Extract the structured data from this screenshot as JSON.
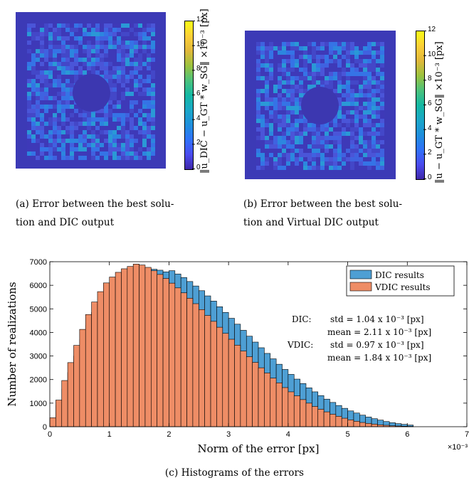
{
  "panel_a": {
    "colorbar": {
      "ticks": [
        "12",
        "10",
        "8",
        "6",
        "4",
        "2",
        "0"
      ],
      "label": "‖u_DIC − u_GT * w_SG‖ ×10⁻³ [px]"
    },
    "caption_line1": "(a)  Error between the best solu-",
    "caption_line2": "tion and DIC output"
  },
  "panel_b": {
    "colorbar": {
      "ticks": [
        "12",
        "10",
        "8",
        "6",
        "4",
        "2",
        "0"
      ],
      "label": "‖u − u_GT * w_SG‖ ×10⁻³ [px]"
    },
    "caption_line1": "(b)  Error between the best solu-",
    "caption_line2": "tion and Virtual DIC output"
  },
  "panel_c": {
    "caption": "(c)  Histograms of the errors"
  },
  "colors": {
    "dic": "#4e9fd4",
    "vdic": "#ee8d66",
    "map_bg": "#3c3ab6"
  },
  "chart_data": {
    "type": "bar",
    "xlabel": "Norm of the error [px]",
    "ylabel": "Number of realizations",
    "x_multiplier": "×10⁻³",
    "xlim": [
      0,
      7
    ],
    "ylim": [
      0,
      7000
    ],
    "xticks": [
      "0",
      "1",
      "2",
      "3",
      "4",
      "5",
      "6",
      "7"
    ],
    "yticks": [
      "0",
      "1000",
      "2000",
      "3000",
      "4000",
      "5000",
      "6000",
      "7000"
    ],
    "bin_width": 0.1,
    "bin_starts": [
      0,
      0.1,
      0.2,
      0.3,
      0.4,
      0.5,
      0.6,
      0.7,
      0.8,
      0.9,
      1.0,
      1.1,
      1.2,
      1.3,
      1.4,
      1.5,
      1.6,
      1.7,
      1.8,
      1.9,
      2.0,
      2.1,
      2.2,
      2.3,
      2.4,
      2.5,
      2.6,
      2.7,
      2.8,
      2.9,
      3.0,
      3.1,
      3.2,
      3.3,
      3.4,
      3.5,
      3.6,
      3.7,
      3.8,
      3.9,
      4.0,
      4.1,
      4.2,
      4.3,
      4.4,
      4.5,
      4.6,
      4.7,
      4.8,
      4.9,
      5.0,
      5.1,
      5.2,
      5.3,
      5.4,
      5.5,
      5.6,
      5.7,
      5.8,
      5.9,
      6.0
    ],
    "series": [
      {
        "name": "DIC results",
        "values": [
          300,
          900,
          1600,
          2300,
          3000,
          3700,
          4300,
          4850,
          5300,
          5700,
          6000,
          6250,
          6430,
          6560,
          6640,
          6680,
          6690,
          6680,
          6640,
          6570,
          6620,
          6480,
          6330,
          6160,
          5970,
          5770,
          5550,
          5330,
          5090,
          4850,
          4600,
          4350,
          4090,
          3840,
          3590,
          3350,
          3110,
          2880,
          2650,
          2430,
          2220,
          2020,
          1830,
          1650,
          1480,
          1320,
          1170,
          1030,
          900,
          780,
          670,
          580,
          490,
          410,
          340,
          280,
          220,
          170,
          130,
          100,
          70
        ]
      },
      {
        "name": "VDIC results",
        "values": [
          380,
          1130,
          1960,
          2720,
          3450,
          4130,
          4760,
          5290,
          5730,
          6100,
          6350,
          6550,
          6700,
          6800,
          6900,
          6860,
          6760,
          6620,
          6460,
          6290,
          6090,
          5890,
          5680,
          5450,
          5220,
          4970,
          4720,
          4470,
          4220,
          3960,
          3710,
          3460,
          3210,
          2970,
          2730,
          2500,
          2280,
          2060,
          1860,
          1660,
          1480,
          1310,
          1150,
          1000,
          860,
          740,
          630,
          530,
          440,
          360,
          290,
          230,
          180,
          140,
          110,
          80,
          60,
          40,
          30,
          20,
          15
        ]
      }
    ],
    "legend": {
      "position": "top-right",
      "entries": [
        "DIC results",
        "VDIC results"
      ]
    },
    "annotations": {
      "dic_label": "DIC:",
      "dic_std": "std = 1.04 x 10⁻³ [px]",
      "dic_mean": "mean = 2.11 x 10⁻³ [px]",
      "vdic_label": "VDIC:",
      "vdic_std": "std = 0.97 x 10⁻³ [px]",
      "vdic_mean": "mean = 1.84 x 10⁻³ [px]"
    }
  }
}
